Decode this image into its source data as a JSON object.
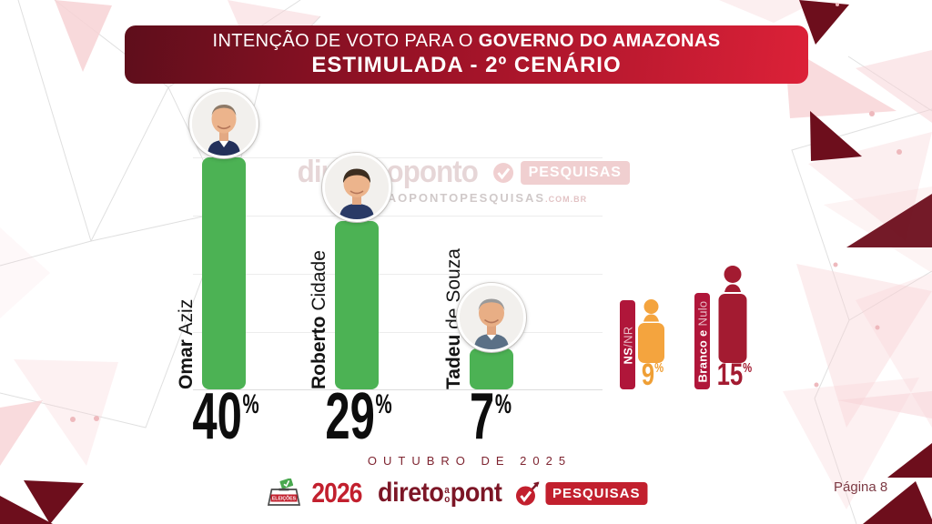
{
  "header": {
    "line1_regular": "INTENÇÃO DE VOTO PARA O ",
    "line1_bold": "GOVERNO DO AMAZONAS",
    "line2": "ESTIMULADA - 2º CENÁRIO"
  },
  "chart": {
    "candidates": [
      {
        "first": "Omar",
        "last": " Aziz"
      },
      {
        "first": "Roberto",
        "last": " Cidade"
      },
      {
        "first": "Tadeu",
        "last": " de Souza"
      }
    ],
    "others": [
      {
        "label_bold": "NS",
        "label_light": "/NR"
      },
      {
        "label_bold": "Branco e ",
        "label_light": "Nulo"
      }
    ]
  },
  "watermark": {
    "brand": "diretoaoponto",
    "badge": "PESQUISAS",
    "url": "DIRETOAOPONTOPESQUISAS",
    "url_suffix": ".COM.BR"
  },
  "footer": {
    "page": "Página 8",
    "logo": {
      "ballot_label": "ELEIÇÕES",
      "year": "2026",
      "word1": "direto",
      "mid_top": "a",
      "mid_bottom": "o",
      "word2": "pont",
      "badge": "PESQUISAS"
    }
  },
  "chart_data": {
    "type": "bar",
    "title": "INTENÇÃO DE VOTO PARA O GOVERNO DO AMAZONAS",
    "subtitle": "ESTIMULADA - 2º CENÁRIO",
    "categories": [
      "Omar Aziz",
      "Roberto Cidade",
      "Tadeu de Souza"
    ],
    "values": [
      40,
      29,
      7
    ],
    "unit": "%",
    "bar_color": "#4cb254",
    "ylim": [
      0,
      40
    ],
    "gridline_step": 10,
    "legend_position": "none",
    "other_categories": [
      {
        "label": "NS/NR",
        "value": 9,
        "color": "#f4a43e"
      },
      {
        "label": "Branco e Nulo",
        "value": 15,
        "color": "#a31b31"
      }
    ],
    "annotation": "OUTUBRO DE 2025"
  }
}
